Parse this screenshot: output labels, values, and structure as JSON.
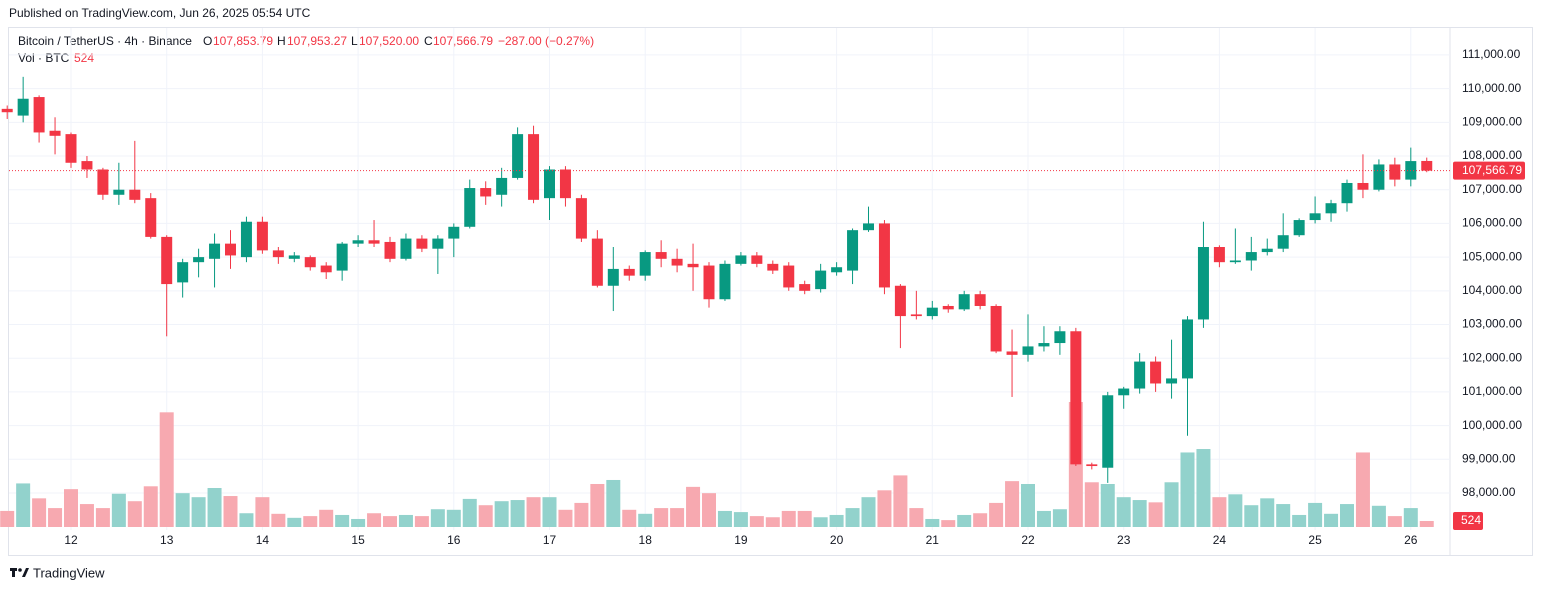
{
  "published": "Published on TradingView.com, Jun 26, 2025 05:54 UTC",
  "legend": {
    "symbol": "Bitcoin / TetherUS · 4h · Binance",
    "o": "O",
    "open": "107,853.79",
    "h": "H",
    "high": "107,953.27",
    "l": "L",
    "low": "107,520.00",
    "c": "C",
    "close": "107,566.79",
    "change": "−287.00 (−0.27%)",
    "volume_title": "Vol · BTC"
  },
  "brand": "TradingView",
  "chart_data": {
    "type": "candlestick",
    "categories": [
      null,
      null,
      null,
      null,
      "12",
      null,
      null,
      null,
      null,
      null,
      "13",
      null,
      null,
      null,
      null,
      null,
      "14",
      null,
      null,
      null,
      null,
      null,
      "15",
      null,
      null,
      null,
      null,
      null,
      "16",
      null,
      null,
      null,
      null,
      null,
      "17",
      null,
      null,
      null,
      null,
      null,
      "18",
      null,
      null,
      null,
      null,
      null,
      "19",
      null,
      null,
      null,
      null,
      null,
      "20",
      null,
      null,
      null,
      null,
      null,
      "21",
      null,
      null,
      null,
      null,
      null,
      "22",
      null,
      null,
      null,
      null,
      null,
      "23",
      null,
      null,
      null,
      null,
      null,
      "24",
      null,
      null,
      null,
      null,
      null,
      "25",
      null,
      null,
      null,
      null,
      null,
      "26",
      null
    ],
    "open": [
      109400,
      109200,
      109750,
      108750,
      108650,
      107850,
      107600,
      106850,
      107000,
      106750,
      105600,
      104250,
      104850,
      104950,
      105400,
      105000,
      106050,
      105200,
      104950,
      105000,
      104750,
      104600,
      105400,
      105500,
      105450,
      104950,
      105550,
      105250,
      105550,
      105900,
      107050,
      106850,
      107350,
      108650,
      106750,
      107600,
      106750,
      105550,
      104150,
      104650,
      104450,
      105150,
      104950,
      104800,
      104750,
      103750,
      104800,
      105050,
      104800,
      104750,
      104200,
      104050,
      104550,
      104600,
      105800,
      106000,
      104150,
      103300,
      103250,
      103550,
      103450,
      103900,
      103550,
      102200,
      102100,
      102350,
      102450,
      102800,
      98850,
      98750,
      100900,
      101100,
      101900,
      101250,
      101400,
      103150,
      105300,
      104850,
      104900,
      105150,
      105250,
      105650,
      106100,
      106300,
      106600,
      107200,
      107000,
      107750,
      107300,
      107853.79
    ],
    "high": [
      109500,
      110350,
      109800,
      109150,
      108700,
      108000,
      107650,
      107800,
      108450,
      106900,
      105650,
      104950,
      105250,
      105700,
      105800,
      106200,
      106200,
      105300,
      105150,
      105050,
      104850,
      105450,
      105650,
      106100,
      105600,
      105700,
      105650,
      105650,
      106000,
      107300,
      107250,
      107650,
      108850,
      108900,
      107700,
      107700,
      106850,
      105800,
      105300,
      104750,
      105200,
      105500,
      105250,
      105400,
      104850,
      104900,
      105150,
      105150,
      104900,
      104850,
      104300,
      104800,
      104850,
      105850,
      106500,
      106100,
      104200,
      104000,
      103700,
      103600,
      104000,
      104000,
      103600,
      102850,
      103300,
      102950,
      102950,
      102900,
      98900,
      101000,
      101150,
      102150,
      102050,
      102550,
      103250,
      106050,
      105350,
      105850,
      105600,
      105550,
      106300,
      106150,
      106800,
      106700,
      107300,
      108050,
      107900,
      107950,
      108250,
      107953.27
    ],
    "low": [
      109100,
      109000,
      108400,
      108050,
      107650,
      107350,
      106700,
      106550,
      106600,
      105550,
      102650,
      103800,
      104400,
      104100,
      104650,
      104850,
      105100,
      104800,
      104850,
      104600,
      104350,
      104300,
      105300,
      105300,
      104850,
      104900,
      105150,
      104500,
      105000,
      105850,
      106550,
      106500,
      107300,
      106600,
      106100,
      106500,
      105450,
      104100,
      103400,
      104300,
      104300,
      104700,
      104550,
      104000,
      103500,
      103700,
      104750,
      104700,
      104500,
      104000,
      103900,
      103950,
      104450,
      104200,
      105750,
      103900,
      102300,
      103150,
      103150,
      103350,
      103400,
      103450,
      102150,
      100850,
      101900,
      102200,
      102100,
      98800,
      98700,
      98300,
      100500,
      100950,
      101000,
      100800,
      99700,
      102900,
      104700,
      104800,
      104600,
      105050,
      105150,
      105600,
      106000,
      106050,
      106350,
      106750,
      106950,
      107100,
      107100,
      107520
    ],
    "close": [
      109300,
      109700,
      108700,
      108600,
      107800,
      107600,
      106850,
      107000,
      106700,
      105600,
      104200,
      104850,
      105000,
      105400,
      105050,
      106050,
      105200,
      105000,
      105050,
      104700,
      104550,
      105400,
      105500,
      105400,
      104950,
      105550,
      105250,
      105550,
      105900,
      107050,
      106800,
      107350,
      108650,
      106700,
      107600,
      106750,
      105550,
      104150,
      104650,
      104450,
      105150,
      104950,
      104750,
      104700,
      103750,
      104800,
      105050,
      104800,
      104600,
      104100,
      104000,
      104600,
      104700,
      105800,
      106000,
      104100,
      103250,
      103250,
      103500,
      103450,
      103900,
      103550,
      102200,
      102100,
      102350,
      102450,
      102800,
      98850,
      98800,
      100900,
      101100,
      101900,
      101250,
      101400,
      103150,
      105300,
      104850,
      104900,
      105150,
      105250,
      105650,
      106100,
      106300,
      106600,
      107200,
      107000,
      107750,
      107300,
      107850,
      107566.79
    ],
    "volume": [
      1400,
      3800,
      2500,
      1650,
      3300,
      2000,
      1650,
      2900,
      2250,
      3550,
      10000,
      2950,
      2600,
      3400,
      2700,
      1200,
      2600,
      1150,
      800,
      950,
      1500,
      1050,
      700,
      1200,
      950,
      1050,
      950,
      1550,
      1500,
      2450,
      1900,
      2250,
      2350,
      2600,
      2600,
      1500,
      2100,
      3750,
      4100,
      1500,
      1150,
      1650,
      1650,
      3500,
      2950,
      1400,
      1300,
      950,
      850,
      1400,
      1400,
      850,
      1050,
      1650,
      2600,
      3200,
      4500,
      1650,
      700,
      600,
      1050,
      1200,
      2100,
      4000,
      3750,
      1400,
      1550,
      10900,
      3900,
      3750,
      2600,
      2350,
      2150,
      3900,
      6500,
      6800,
      2600,
      2850,
      1900,
      2500,
      2000,
      1050,
      2100,
      1150,
      2000,
      6500,
      1850,
      950,
      1650,
      524
    ],
    "close_label": "107,566.79",
    "up_color": "#089981",
    "down_color": "#f23645",
    "up_volume_color": "#92d2cc",
    "down_volume_color": "#f7a9b0",
    "ylim": [
      96160,
      111740
    ],
    "yticks": [
      {
        "value": 98000,
        "label": "98,000.00"
      },
      {
        "value": 99000,
        "label": "99,000.00"
      },
      {
        "value": 100000,
        "label": "100,000.00"
      },
      {
        "value": 101000,
        "label": "101,000.00"
      },
      {
        "value": 102000,
        "label": "102,000.00"
      },
      {
        "value": 103000,
        "label": "103,000.00"
      },
      {
        "value": 104000,
        "label": "104,000.00"
      },
      {
        "value": 105000,
        "label": "105,000.00"
      },
      {
        "value": 106000,
        "label": "106,000.00"
      },
      {
        "value": 107000,
        "label": "107,000.00"
      },
      {
        "value": 108000,
        "label": "108,000.00"
      },
      {
        "value": 109000,
        "label": "109,000.00"
      },
      {
        "value": 110000,
        "label": "110,000.00"
      },
      {
        "value": 111000,
        "label": "111,000.00"
      }
    ],
    "grid": true
  }
}
